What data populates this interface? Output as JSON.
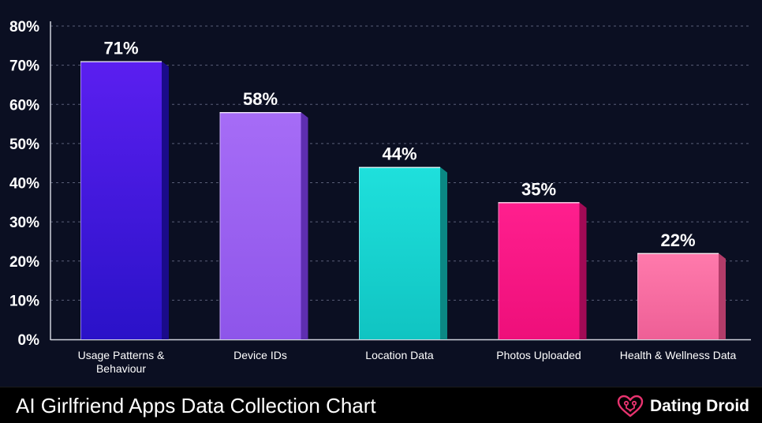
{
  "chart_data": {
    "type": "bar",
    "title": "AI Girlfriend Apps Data Collection Chart",
    "categories": [
      [
        "Usage Patterns &",
        "Behaviour"
      ],
      [
        "Device IDs"
      ],
      [
        "Location Data"
      ],
      [
        "Photos Uploaded"
      ],
      [
        "Health & Wellness Data"
      ]
    ],
    "values": [
      71,
      58,
      44,
      35,
      22
    ],
    "value_labels": [
      "71%",
      "58%",
      "44%",
      "35%",
      "22%"
    ],
    "colors": [
      {
        "top": "#5b1ff0",
        "bottom": "#2a12c8",
        "side": "#1a0b8a"
      },
      {
        "top": "#a66cf6",
        "bottom": "#8e55ea",
        "side": "#5e2eb0"
      },
      {
        "top": "#1fe0dc",
        "bottom": "#10c4c2",
        "side": "#0b8884"
      },
      {
        "top": "#ff1f8e",
        "bottom": "#ee0f7a",
        "side": "#a20a55"
      },
      {
        "top": "#ff7aac",
        "bottom": "#ee5f96",
        "side": "#b23c69"
      }
    ],
    "ylim": [
      0,
      80
    ],
    "yticks": [
      0,
      10,
      20,
      30,
      40,
      50,
      60,
      70,
      80
    ],
    "ytick_labels": [
      "0%",
      "10%",
      "20%",
      "30%",
      "40%",
      "50%",
      "60%",
      "70%",
      "80%"
    ],
    "grid": true,
    "xlabel": "",
    "ylabel": ""
  },
  "footer": {
    "title": "AI Girlfriend Apps Data Collection Chart",
    "brand_name": "Dating Droid",
    "brand_icon": "heart-circuit-icon",
    "brand_color": "#e8336f"
  }
}
